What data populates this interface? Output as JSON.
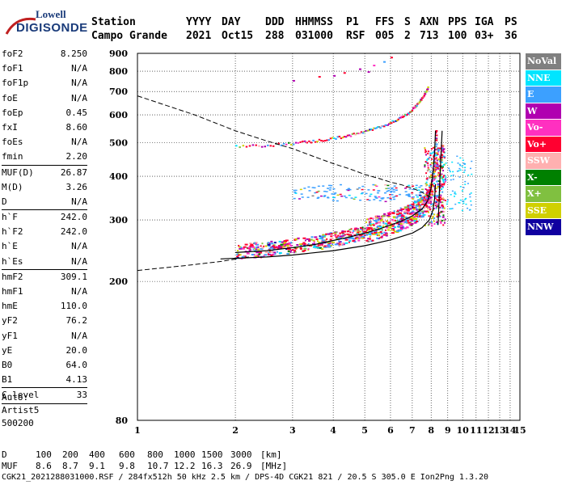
{
  "logo": {
    "brand": "Lowell",
    "product": "DIGISONDE"
  },
  "header": {
    "line1": [
      "Station",
      "YYYY",
      "DAY",
      "DDD",
      "HHMMSS",
      "P1",
      "FFS",
      "S",
      "AXN",
      "PPS",
      "IGA",
      "PS"
    ],
    "line2": [
      "Campo Grande",
      "2021",
      "Oct15",
      "288",
      "031000",
      "RSF",
      "005",
      "2",
      "713",
      "100",
      "03+",
      "36"
    ]
  },
  "params": [
    {
      "k": "foF2",
      "v": "8.250"
    },
    {
      "k": "foF1",
      "v": "N/A"
    },
    {
      "k": "foF1p",
      "v": "N/A"
    },
    {
      "k": "foE",
      "v": "N/A"
    },
    {
      "k": "foEp",
      "v": "0.45"
    },
    {
      "k": "fxI",
      "v": "8.60"
    },
    {
      "k": "foEs",
      "v": "N/A"
    },
    {
      "k": "fmin",
      "v": "2.20"
    },
    {
      "sep": true
    },
    {
      "k": "MUF(D)",
      "v": "26.87"
    },
    {
      "k": "M(D)",
      "v": "3.26"
    },
    {
      "k": "D",
      "v": "N/A"
    },
    {
      "sep": true
    },
    {
      "k": "h`F",
      "v": "242.0"
    },
    {
      "k": "h`F2",
      "v": "242.0"
    },
    {
      "k": "h`E",
      "v": "N/A"
    },
    {
      "k": "h`Es",
      "v": "N/A"
    },
    {
      "sep": true
    },
    {
      "k": "hmF2",
      "v": "309.1"
    },
    {
      "k": "hmF1",
      "v": "N/A"
    },
    {
      "k": "hmE",
      "v": "110.0"
    },
    {
      "k": "yF2",
      "v": "76.2"
    },
    {
      "k": "yF1",
      "v": "N/A"
    },
    {
      "k": "yE",
      "v": "20.0"
    },
    {
      "k": "B0",
      "v": "64.0"
    },
    {
      "k": "B1",
      "v": "4.13"
    },
    {
      "sep": true
    },
    {
      "k": "C-level",
      "v": "33"
    },
    {
      "sep": true
    }
  ],
  "auto": {
    "l1": "Auto:",
    "l2": "Artist5",
    "l3": "500200"
  },
  "legend": [
    {
      "label": "NoVal",
      "color": "#808080"
    },
    {
      "label": "NNE",
      "color": "#00e5ff"
    },
    {
      "label": "E",
      "color": "#3ca0ff"
    },
    {
      "label": "W",
      "color": "#b000b0"
    },
    {
      "label": "Vo-",
      "color": "#ff30c0"
    },
    {
      "label": "Vo+",
      "color": "#ff0030"
    },
    {
      "label": "SSW",
      "color": "#ffb0b0"
    },
    {
      "label": "X-",
      "color": "#008000"
    },
    {
      "label": "X+",
      "color": "#80c040"
    },
    {
      "label": "SSE",
      "color": "#d0d000"
    },
    {
      "label": "NNW",
      "color": "#1000a0"
    }
  ],
  "bottom": {
    "d_label": "D",
    "d_values": [
      "100",
      "200",
      "400",
      "600",
      "800",
      "1000",
      "1500",
      "3000",
      "[km]"
    ],
    "muf_label": "MUF",
    "muf_values": [
      "8.6",
      "8.7",
      "9.1",
      "9.8",
      "10.7",
      "12.2",
      "16.3",
      "26.9",
      "[MHz]"
    ],
    "footer": "CGK21_2021288031000.RSF / 284fx512h 50 kHz 2.5 km / DPS-4D CGK21 821 / 20.5 S 305.0 E Ion2Png 1.3.20"
  },
  "chart_data": {
    "type": "scatter",
    "title": "",
    "xlabel": "",
    "ylabel": "",
    "xlim": [
      1,
      15
    ],
    "ylim": [
      80,
      900
    ],
    "x_ticks": [
      1,
      2,
      3,
      4,
      5,
      6,
      7,
      8,
      9,
      10,
      11,
      12,
      13,
      14,
      15
    ],
    "y_ticks": [
      80,
      200,
      300,
      400,
      500,
      600,
      700,
      800,
      900
    ],
    "y_scale": "log",
    "ordinary_trace": [
      [
        2.0,
        242
      ],
      [
        2.5,
        245
      ],
      [
        3.0,
        250
      ],
      [
        3.5,
        255
      ],
      [
        4.0,
        262
      ],
      [
        4.5,
        268
      ],
      [
        5.0,
        275
      ],
      [
        5.5,
        282
      ],
      [
        6.0,
        290
      ],
      [
        6.5,
        298
      ],
      [
        7.0,
        308
      ],
      [
        7.5,
        322
      ],
      [
        7.8,
        340
      ],
      [
        8.0,
        370
      ],
      [
        8.1,
        410
      ],
      [
        8.2,
        470
      ],
      [
        8.25,
        540
      ]
    ],
    "extraordinary_trace": [
      [
        8.4,
        290
      ],
      [
        8.45,
        330
      ],
      [
        8.5,
        380
      ],
      [
        8.55,
        430
      ],
      [
        8.6,
        480
      ],
      [
        8.65,
        540
      ]
    ],
    "model_profile": [
      [
        1.8,
        232
      ],
      [
        2.5,
        235
      ],
      [
        3.0,
        238
      ],
      [
        4.0,
        245
      ],
      [
        5.0,
        253
      ],
      [
        6.0,
        263
      ],
      [
        7.0,
        275
      ],
      [
        7.5,
        285
      ],
      [
        7.9,
        300
      ],
      [
        8.1,
        320
      ],
      [
        8.2,
        345
      ],
      [
        8.25,
        380
      ]
    ],
    "muf_curve": [
      [
        1.0,
        680
      ],
      [
        1.5,
        600
      ],
      [
        2.0,
        540
      ],
      [
        2.5,
        505
      ],
      [
        3.0,
        480
      ],
      [
        3.5,
        455
      ],
      [
        4.0,
        435
      ],
      [
        4.5,
        420
      ],
      [
        5.0,
        405
      ],
      [
        5.5,
        395
      ],
      [
        6.0,
        385
      ],
      [
        6.5,
        378
      ],
      [
        7.0,
        370
      ],
      [
        7.5,
        360
      ],
      [
        8.0,
        348
      ]
    ],
    "multi_hop_trace": [
      [
        2.0,
        488
      ],
      [
        2.5,
        493
      ],
      [
        3.0,
        500
      ],
      [
        3.5,
        507
      ],
      [
        4.0,
        516
      ],
      [
        4.5,
        527
      ],
      [
        5.0,
        540
      ],
      [
        5.5,
        555
      ],
      [
        6.0,
        573
      ],
      [
        6.5,
        595
      ],
      [
        7.0,
        625
      ],
      [
        7.3,
        655
      ],
      [
        7.6,
        690
      ],
      [
        7.8,
        725
      ]
    ]
  }
}
